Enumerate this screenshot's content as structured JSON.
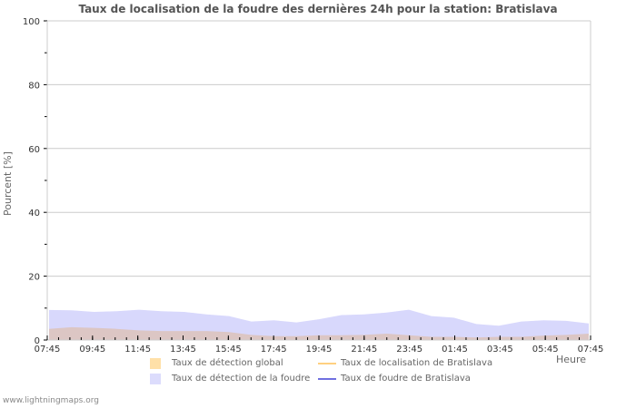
{
  "title": "Taux de localisation de la foudre des dernières 24h pour la station: Bratislava",
  "footer": "www.lightningmaps.org",
  "axes": {
    "ylabel": "Pourcent   [%]",
    "xlabel": "Heure",
    "yticks": [
      "0",
      "20",
      "40",
      "60",
      "80",
      "100"
    ],
    "xticks": [
      "07:45",
      "09:45",
      "11:45",
      "13:45",
      "15:45",
      "17:45",
      "19:45",
      "21:45",
      "23:45",
      "01:45",
      "03:45",
      "05:45",
      "07:45"
    ]
  },
  "legend": [
    {
      "label": "Taux de détection global",
      "kind": "area",
      "color": "#ffe0a8"
    },
    {
      "label": "Taux de détection de la foudre",
      "kind": "area",
      "color": "#dcdcfc"
    },
    {
      "label": "Taux de localisation de Bratislava",
      "kind": "line",
      "color": "#ffd080"
    },
    {
      "label": "Taux de foudre de Bratislava",
      "kind": "line",
      "color": "#7070e0"
    }
  ],
  "colors": {
    "detection_area": "#d8d8fc",
    "global_area": "#dcc6c4",
    "grid": "#cccccc",
    "axis": "#000000"
  },
  "chart_data": {
    "type": "area",
    "title": "Taux de localisation de la foudre des dernières 24h pour la station: Bratislava",
    "xlabel": "Heure",
    "ylabel": "Pourcent [%]",
    "ylim": [
      0,
      100
    ],
    "grid": true,
    "legend_position": "bottom",
    "x": [
      "07:45",
      "08:45",
      "09:45",
      "10:45",
      "11:45",
      "12:45",
      "13:45",
      "14:45",
      "15:45",
      "16:45",
      "17:45",
      "18:45",
      "19:45",
      "20:45",
      "21:45",
      "22:45",
      "23:45",
      "00:45",
      "01:45",
      "02:45",
      "03:45",
      "04:45",
      "05:45",
      "06:45",
      "07:45"
    ],
    "series": [
      {
        "name": "Taux de détection de la foudre",
        "values": [
          9.4,
          9.3,
          8.8,
          9.0,
          9.5,
          9.0,
          8.8,
          8.0,
          7.5,
          5.8,
          6.2,
          5.5,
          6.5,
          7.8,
          8.0,
          8.6,
          9.5,
          7.5,
          7.0,
          5.0,
          4.5,
          5.8,
          6.2,
          6.0,
          5.2
        ]
      },
      {
        "name": "Taux de détection global",
        "values": [
          3.5,
          4.0,
          3.8,
          3.5,
          3.0,
          2.8,
          2.8,
          2.8,
          2.5,
          1.6,
          1.2,
          1.2,
          1.5,
          1.5,
          1.6,
          2.0,
          1.5,
          1.0,
          1.0,
          0.8,
          1.0,
          1.0,
          1.4,
          1.6,
          2.0
        ]
      },
      {
        "name": "Taux de localisation de Bratislava",
        "values": []
      },
      {
        "name": "Taux de foudre de Bratislava",
        "values": []
      }
    ]
  }
}
